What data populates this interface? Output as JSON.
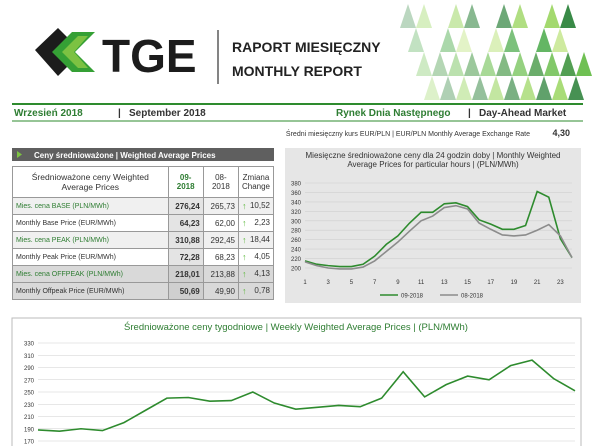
{
  "header": {
    "logo": "TGE",
    "title_pl": "RAPORT MIESIĘCZNY",
    "title_en": "MONTHLY REPORT"
  },
  "subheader": {
    "month_pl": "Wrzesień 2018",
    "sep1": "|",
    "month_en": "September 2018",
    "market_pl": "Rynek Dnia Następnego",
    "sep2": "|",
    "market_en": "Day-Ahead Market"
  },
  "exchange_rate": {
    "label": "Średni miesięczny kurs EUR/PLN  |  EUR/PLN Monthly Average Exchange Rate",
    "value": "4,30"
  },
  "table": {
    "section_title": "Ceny średnioważone  |  Weighted Average Prices",
    "header": [
      "Średnioważone ceny Weighted Average Prices",
      "09-2018",
      "08-2018",
      "Zmiana Change"
    ],
    "rows": [
      [
        "Mies. cena BASE (PLN/MWh)",
        "276,24",
        "265,73",
        "10,52"
      ],
      [
        "Monthly Base Price (EUR/MWh)",
        "64,23",
        "62,00",
        "2,23"
      ],
      [
        "Mies. cena PEAK (PLN/MWh)",
        "310,88",
        "292,45",
        "18,44"
      ],
      [
        "Monthly Peak Price (EUR/MWh)",
        "72,28",
        "68,23",
        "4,05"
      ],
      [
        "Mies. cena OFFPEAK (PLN/MWh)",
        "218,01",
        "213,88",
        "4,13"
      ],
      [
        "Monthly Offpeak Price (EUR/MWh)",
        "50,69",
        "49,90",
        "0,78"
      ]
    ]
  },
  "chart_data": [
    {
      "type": "line",
      "title": "Miesięczne średnioważone ceny dla 24 godzin doby  |  Monthly Weighted Average Prices for particular hours  |  (PLN/MWh)",
      "x": [
        1,
        2,
        3,
        4,
        5,
        6,
        7,
        8,
        9,
        10,
        11,
        12,
        13,
        14,
        15,
        16,
        17,
        18,
        19,
        20,
        21,
        22,
        23,
        24
      ],
      "xlim": [
        1,
        24
      ],
      "xticks": [
        1,
        3,
        5,
        7,
        9,
        11,
        13,
        15,
        17,
        19,
        21,
        23
      ],
      "ylim": [
        200,
        380
      ],
      "yticks": [
        200,
        220,
        240,
        260,
        280,
        300,
        320,
        340,
        360,
        380
      ],
      "grid": true,
      "legend": "bottom",
      "series": [
        {
          "name": "09-2018",
          "color": "#2e8b2e",
          "values": [
            215,
            208,
            205,
            203,
            203,
            208,
            225,
            250,
            268,
            295,
            318,
            318,
            336,
            338,
            330,
            302,
            293,
            282,
            282,
            290,
            362,
            350,
            262,
            222
          ]
        },
        {
          "name": "08-2018",
          "color": "#8c8c8c",
          "values": [
            213,
            205,
            200,
            198,
            198,
            202,
            215,
            235,
            255,
            278,
            300,
            310,
            328,
            332,
            325,
            295,
            282,
            270,
            268,
            270,
            280,
            292,
            268,
            222
          ]
        }
      ]
    },
    {
      "type": "line",
      "title": "Średnioważone ceny tygodniowe  |  Weekly Weighted Average Prices  |  (PLN/MWh)",
      "ylim": [
        170,
        330
      ],
      "yticks": [
        170,
        190,
        210,
        230,
        250,
        270,
        290,
        310,
        330
      ],
      "grid": true,
      "color": "#2e8b2e",
      "values": [
        188,
        186,
        190,
        187,
        200,
        220,
        240,
        241,
        235,
        236,
        250,
        232,
        222,
        225,
        228,
        226,
        240,
        283,
        242,
        262,
        276,
        270,
        293,
        302,
        272,
        252
      ]
    }
  ]
}
